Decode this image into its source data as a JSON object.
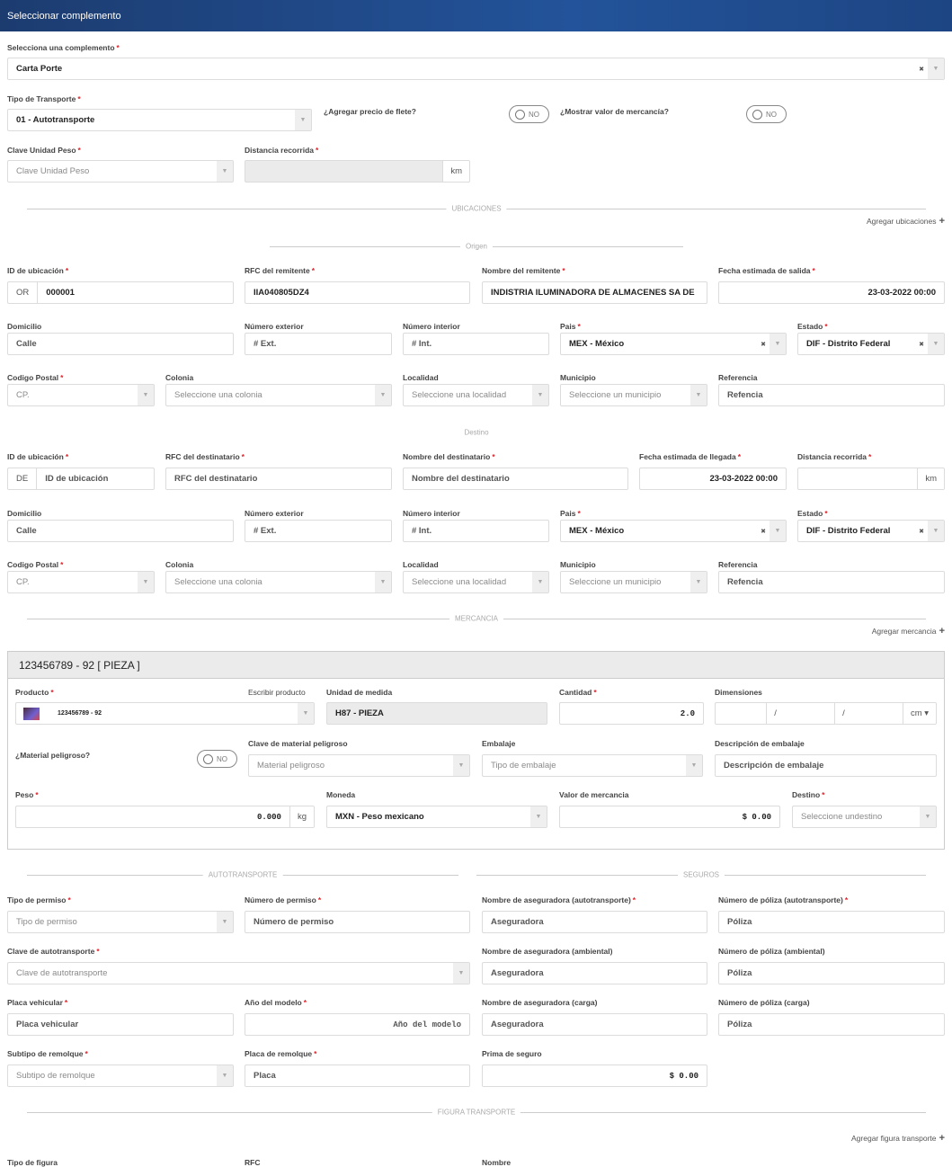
{
  "header": {
    "title": "Seleccionar complemento"
  },
  "required_mark": "*",
  "icons": {
    "select_arrow": "caret-down-icon",
    "clear": "clear-x-icon",
    "add": "plus-icon",
    "toggle": "toggle-off-icon"
  },
  "colors": {
    "header": "#1d4583",
    "required": "#e0242b"
  },
  "general": {
    "fields": [
      {
        "label": "Selecciona una complemento",
        "required": true,
        "kind": "select-clearable",
        "value": "Carta Porte"
      },
      {
        "label": "Tipo de Transporte",
        "required": true,
        "kind": "select",
        "value": "01 - Autotransporte"
      },
      {
        "label": "Clave Unidad Peso",
        "required": true,
        "kind": "select",
        "placeholder": "Clave Unidad Peso"
      },
      {
        "label": "Distancia recorrida",
        "required": true,
        "kind": "readonly",
        "addon": "km"
      }
    ],
    "toggles": [
      {
        "label": "¿Agregar precio de flete?",
        "state": "NO"
      },
      {
        "label": "¿Mostrar valor de mercancía?",
        "state": "NO"
      }
    ]
  },
  "ubicaciones": {
    "title": "UBICACIONES",
    "add_label": "Agregar ubicaciones",
    "origen_title": "Origen",
    "destino_title": "Destino"
  },
  "origen": {
    "fields": [
      {
        "label": "ID de ubicación",
        "required": true,
        "kind": "text",
        "prefix": "OR",
        "value": "000001"
      },
      {
        "label": "RFC del remitente",
        "required": true,
        "kind": "text",
        "value": "IIA040805DZ4"
      },
      {
        "label": "Nombre del remitente",
        "required": true,
        "kind": "text",
        "value": "INDISTRIA ILUMINADORA DE ALMACENES SA DE"
      },
      {
        "label": "Fecha estimada de salida",
        "required": true,
        "kind": "text",
        "value": "23-03-2022 00:00"
      },
      {
        "label": "Domicilio",
        "kind": "text",
        "placeholder": "Calle"
      },
      {
        "label": "Número exterior",
        "kind": "text",
        "placeholder": "# Ext."
      },
      {
        "label": "Número interior",
        "kind": "text",
        "placeholder": "# Int."
      },
      {
        "label": "Pais",
        "required": true,
        "kind": "select-clearable",
        "value": "MEX - México"
      },
      {
        "label": "Estado",
        "required": true,
        "kind": "select-clearable",
        "value": "DIF - Distrito Federal"
      },
      {
        "label": "Codigo Postal",
        "required": true,
        "kind": "select",
        "placeholder": "CP."
      },
      {
        "label": "Colonia",
        "kind": "select",
        "placeholder": "Seleccione una colonia"
      },
      {
        "label": "Localidad",
        "kind": "select",
        "placeholder": "Seleccione una localidad"
      },
      {
        "label": "Municipio",
        "kind": "select",
        "placeholder": "Seleccione un municipio"
      },
      {
        "label": "Referencia",
        "kind": "text",
        "placeholder": "Refencia"
      }
    ]
  },
  "destino": {
    "fields": [
      {
        "label": "ID de ubicación",
        "required": true,
        "kind": "text",
        "prefix": "DE",
        "placeholder": "ID de ubicación"
      },
      {
        "label": "RFC del destinatario",
        "required": true,
        "kind": "text",
        "placeholder": "RFC del destinatario"
      },
      {
        "label": "Nombre del destinatario",
        "required": true,
        "kind": "text",
        "placeholder": "Nombre del destinatario"
      },
      {
        "label": "Fecha estimada de llegada",
        "required": true,
        "kind": "text",
        "value": "23-03-2022 00:00"
      },
      {
        "label": "Distancia recorrida",
        "required": true,
        "kind": "text",
        "addon": "km"
      },
      {
        "label": "Domicilio",
        "kind": "text",
        "placeholder": "Calle"
      },
      {
        "label": "Número exterior",
        "kind": "text",
        "placeholder": "# Ext."
      },
      {
        "label": "Número interior",
        "kind": "text",
        "placeholder": "# Int."
      },
      {
        "label": "Pais",
        "required": true,
        "kind": "select-clearable",
        "value": "MEX - México"
      },
      {
        "label": "Estado",
        "required": true,
        "kind": "select-clearable",
        "value": "DIF - Distrito Federal"
      },
      {
        "label": "Codigo Postal",
        "required": true,
        "kind": "select",
        "placeholder": "CP."
      },
      {
        "label": "Colonia",
        "kind": "select",
        "placeholder": "Seleccione una colonia"
      },
      {
        "label": "Localidad",
        "kind": "select",
        "placeholder": "Seleccione una localidad"
      },
      {
        "label": "Municipio",
        "kind": "select",
        "placeholder": "Seleccione un municipio"
      },
      {
        "label": "Referencia",
        "kind": "text",
        "placeholder": "Refencia"
      }
    ]
  },
  "mercancia": {
    "title": "MERCANCIA",
    "add_label": "Agregar mercancia",
    "item_title": "123456789 - 92 [ PIEZA ]",
    "write_product_link": "Escribir producto",
    "toggle": {
      "label": "¿Material peligroso?",
      "state": "NO"
    },
    "dimensions": {
      "label": "Dimensiones",
      "separator": "/",
      "unit": "cm ▾"
    },
    "fields": [
      {
        "label": "Producto",
        "required": true,
        "kind": "select",
        "value": "123456789 - 92",
        "thumbnail": true
      },
      {
        "label": "Unidad de medida",
        "kind": "readonly",
        "value": "H87 - PIEZA"
      },
      {
        "label": "Cantidad",
        "required": true,
        "kind": "text",
        "value": "2.0"
      },
      {
        "label": "Clave de material peligroso",
        "kind": "select",
        "placeholder": "Material peligroso"
      },
      {
        "label": "Embalaje",
        "kind": "select",
        "placeholder": "Tipo de embalaje"
      },
      {
        "label": "Descripción de embalaje",
        "kind": "text",
        "placeholder": "Descripción de embalaje"
      },
      {
        "label": "Peso",
        "required": true,
        "kind": "text",
        "value": "0.000",
        "addon": "kg"
      },
      {
        "label": "Moneda",
        "kind": "select",
        "value": "MXN - Peso mexicano"
      },
      {
        "label": "Valor de mercancia",
        "kind": "text",
        "value": "$ 0.00"
      },
      {
        "label": "Destino",
        "required": true,
        "kind": "select",
        "placeholder": "Seleccione undestino"
      }
    ]
  },
  "autotransporte": {
    "title": "AUTOTRANSPORTE",
    "fields": [
      {
        "label": "Tipo de permiso",
        "required": true,
        "kind": "select",
        "placeholder": "Tipo de permiso"
      },
      {
        "label": "Número de permiso",
        "required": true,
        "kind": "text",
        "placeholder": "Número de permiso"
      },
      {
        "label": "Clave de autotransporte",
        "required": true,
        "kind": "select",
        "placeholder": "Clave de autotransporte"
      },
      {
        "label": "Placa vehicular",
        "required": true,
        "kind": "text",
        "placeholder": "Placa vehicular"
      },
      {
        "label": "Año del modelo",
        "required": true,
        "kind": "text",
        "placeholder": "Año del modelo"
      },
      {
        "label": "Subtipo de remolque",
        "required": true,
        "kind": "select",
        "placeholder": "Subtipo de remolque"
      },
      {
        "label": "Placa de remolque",
        "required": true,
        "kind": "text",
        "placeholder": "Placa"
      }
    ]
  },
  "seguros": {
    "title": "SEGUROS",
    "fields": [
      {
        "label": "Nombre de aseguradora (autotransporte)",
        "required": true,
        "kind": "text",
        "placeholder": "Aseguradora"
      },
      {
        "label": "Número de póliza (autotransporte)",
        "required": true,
        "kind": "text",
        "placeholder": "Póliza"
      },
      {
        "label": "Nombre de aseguradora (ambiental)",
        "kind": "text",
        "placeholder": "Aseguradora"
      },
      {
        "label": "Número de póliza (ambiental)",
        "kind": "text",
        "placeholder": "Póliza"
      },
      {
        "label": "Nombre de aseguradora (carga)",
        "kind": "text",
        "placeholder": "Aseguradora"
      },
      {
        "label": "Número de póliza (carga)",
        "kind": "text",
        "placeholder": "Póliza"
      },
      {
        "label": "Prima de seguro",
        "kind": "text",
        "value": "$ 0.00"
      }
    ]
  },
  "figura": {
    "title": "FIGURA TRANSPORTE",
    "add_label": "Agregar figura transporte",
    "labels": [
      "Tipo de figura",
      "RFC",
      "Nombre"
    ]
  }
}
